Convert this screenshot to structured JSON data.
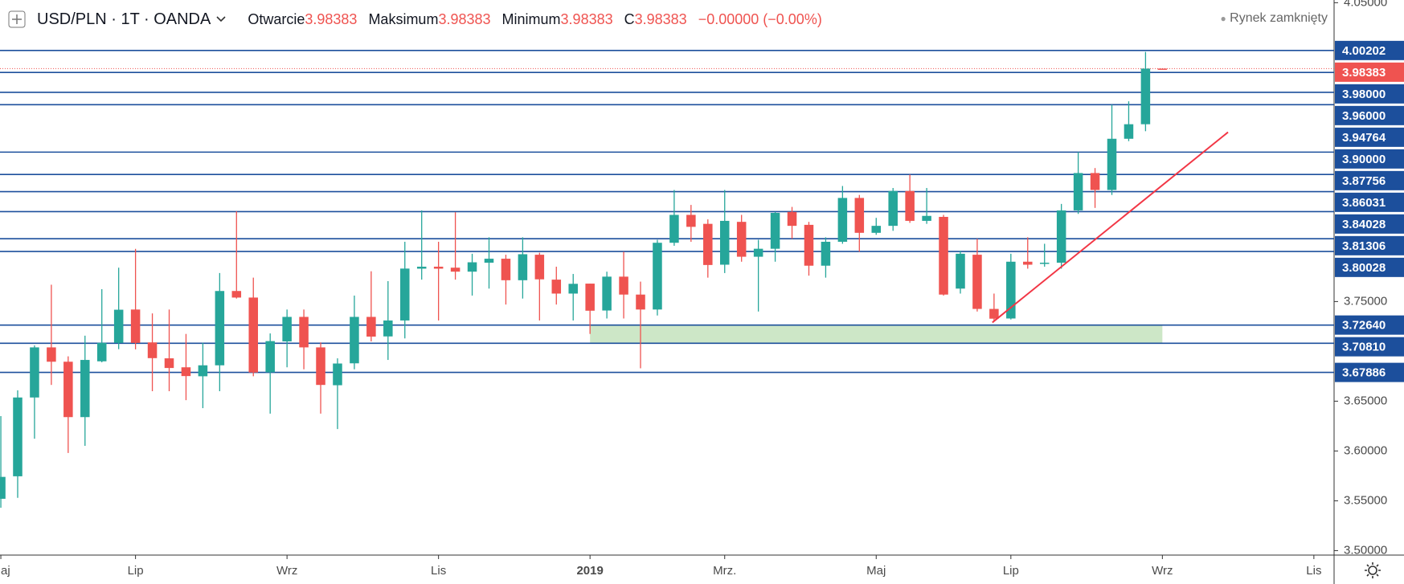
{
  "header": {
    "title": "USD/PLN · 1T · OANDA",
    "open_label": "Otwarcie",
    "high_label": "Maksimum",
    "low_label": "Minimum",
    "close_label": "C",
    "change": "−0.00000 (−0.00%)",
    "status": "Rynek zamknięty"
  },
  "chart_data": {
    "type": "candlestick",
    "x": [
      0,
      1,
      2,
      3,
      4,
      5,
      6,
      7,
      8,
      9,
      10,
      11,
      12,
      13,
      14,
      15,
      16,
      17,
      18,
      19,
      20,
      21,
      22,
      23,
      24,
      25,
      26,
      27,
      28,
      29,
      30,
      31,
      32,
      33,
      34,
      35,
      36,
      37,
      38,
      39,
      40,
      41,
      42,
      43,
      44,
      45,
      46,
      47,
      48,
      49,
      50,
      51,
      52,
      53,
      54,
      55,
      56,
      57,
      58,
      59,
      60,
      61,
      62,
      63,
      64,
      65,
      66,
      67,
      68,
      69
    ],
    "open": [
      3.552,
      3.5746,
      3.6537,
      3.704,
      3.6896,
      3.634,
      3.69,
      3.7085,
      3.742,
      3.709,
      3.693,
      3.684,
      3.675,
      3.686,
      3.7606,
      3.754,
      3.679,
      3.71,
      3.7346,
      3.704,
      3.666,
      3.688,
      3.7346,
      3.715,
      3.731,
      3.783,
      3.785,
      3.784,
      3.78,
      3.789,
      3.793,
      3.7714,
      3.797,
      3.772,
      3.758,
      3.768,
      3.741,
      3.775,
      3.757,
      3.742,
      3.809,
      3.837,
      3.828,
      3.787,
      3.83,
      3.795,
      3.803,
      3.84,
      3.827,
      3.786,
      3.81,
      3.854,
      3.819,
      3.826,
      3.861,
      3.831,
      3.835,
      3.763,
      3.797,
      3.7426,
      3.733,
      3.79,
      3.788,
      3.789,
      3.8415,
      3.879,
      3.862,
      3.9134,
      3.928,
      3.98383
    ],
    "high": [
      3.635,
      3.6609,
      3.706,
      3.7669,
      3.695,
      3.7157,
      3.7624,
      3.784,
      3.8029,
      3.7381,
      3.742,
      3.7175,
      3.7085,
      3.7786,
      3.8406,
      3.774,
      3.718,
      3.742,
      3.742,
      3.709,
      3.693,
      3.756,
      3.7804,
      3.7705,
      3.81,
      3.8415,
      3.81,
      3.8397,
      3.798,
      3.8145,
      3.797,
      3.8145,
      3.799,
      3.785,
      3.7777,
      3.768,
      3.78,
      3.8,
      3.77,
      3.812,
      3.862,
      3.847,
      3.8325,
      3.862,
      3.837,
      3.812,
      3.84,
      3.845,
      3.83,
      3.8145,
      3.866,
      3.857,
      3.834,
      3.864,
      3.8774,
      3.864,
      3.837,
      3.801,
      3.813,
      3.758,
      3.798,
      3.8145,
      3.808,
      3.848,
      3.9,
      3.884,
      3.9476,
      3.951,
      4.0006,
      3.98383
    ],
    "low": [
      3.543,
      3.553,
      3.6123,
      3.6663,
      3.598,
      3.6052,
      3.689,
      3.7022,
      3.702,
      3.66,
      3.66,
      3.651,
      3.643,
      3.66,
      3.753,
      3.675,
      3.6375,
      3.684,
      3.682,
      3.6375,
      3.622,
      3.682,
      3.71,
      3.6914,
      3.713,
      3.772,
      3.731,
      3.772,
      3.756,
      3.763,
      3.747,
      3.753,
      3.731,
      3.747,
      3.731,
      3.7175,
      3.733,
      3.733,
      3.683,
      3.736,
      3.806,
      3.81,
      3.774,
      3.7786,
      3.79,
      3.74,
      3.79,
      3.813,
      3.776,
      3.774,
      3.808,
      3.8,
      3.817,
      3.821,
      3.829,
      3.828,
      3.756,
      3.758,
      3.74,
      3.731,
      3.732,
      3.783,
      3.785,
      3.783,
      3.838,
      3.844,
      3.857,
      3.911,
      3.921,
      3.98383
    ],
    "close": [
      3.574,
      3.6537,
      3.704,
      3.6896,
      3.634,
      3.6914,
      3.7085,
      3.7418,
      3.7085,
      3.6932,
      3.6833,
      3.6752,
      3.686,
      3.7606,
      3.754,
      3.6788,
      3.7103,
      3.7346,
      3.704,
      3.6663,
      3.6878,
      3.7346,
      3.7148,
      3.731,
      3.7831,
      3.785,
      3.783,
      3.78,
      3.7894,
      3.793,
      3.7714,
      3.7975,
      3.7723,
      3.758,
      3.7678,
      3.7408,
      3.775,
      3.757,
      3.742,
      3.809,
      3.837,
      3.825,
      3.7867,
      3.831,
      3.795,
      3.803,
      3.839,
      3.826,
      3.786,
      3.81,
      3.854,
      3.819,
      3.826,
      3.861,
      3.831,
      3.836,
      3.757,
      3.798,
      3.7426,
      3.7328,
      3.79,
      3.787,
      3.789,
      3.8415,
      3.879,
      3.862,
      3.9134,
      3.928,
      3.98383,
      3.98383
    ],
    "up_color": "#26a69a",
    "down_color": "#ef5350",
    "xlim": [
      -0.05,
      79.2
    ],
    "ylim": [
      3.4955,
      4.0527
    ],
    "xticks": [
      {
        "value": 0,
        "label": "aj"
      },
      {
        "value": 8,
        "label": "Lip"
      },
      {
        "value": 17,
        "label": "Wrz"
      },
      {
        "value": 26,
        "label": "Lis"
      },
      {
        "value": 35,
        "label": "2019"
      },
      {
        "value": 43,
        "label": "Mrz."
      },
      {
        "value": 52,
        "label": "Maj"
      },
      {
        "value": 60,
        "label": "Lip"
      },
      {
        "value": 69,
        "label": "Wrz"
      },
      {
        "value": 78,
        "label": "Lis"
      }
    ],
    "yticks": [
      {
        "value": 4.05,
        "label": "4.05000"
      },
      {
        "value": 3.75,
        "label": "3.75000"
      },
      {
        "value": 3.65,
        "label": "3.65000"
      },
      {
        "value": 3.6,
        "label": "3.60000"
      },
      {
        "value": 3.55,
        "label": "3.55000"
      },
      {
        "value": 3.5,
        "label": "3.50000"
      }
    ],
    "levels": [
      4.00202,
      {
        "value": 3.98,
        "label": "3.98000"
      },
      {
        "value": 3.96,
        "label": "3.96000"
      },
      3.94764,
      {
        "value": 3.9,
        "label": "3.90000"
      },
      3.87756,
      3.86031,
      3.84028,
      3.81306,
      3.80028,
      {
        "value": 3.7264,
        "label": "3.72640"
      },
      {
        "value": 3.7081,
        "label": "3.70810"
      },
      3.67886
    ],
    "level_color": "#1c4f9c",
    "zone": {
      "x": [
        35,
        69
      ],
      "y": [
        3.7081,
        3.7264
      ],
      "color": "#cde7c7"
    },
    "trendline": {
      "x": [
        58.9,
        72.9
      ],
      "y": [
        3.729,
        3.92
      ],
      "color": "#f23645"
    }
  }
}
